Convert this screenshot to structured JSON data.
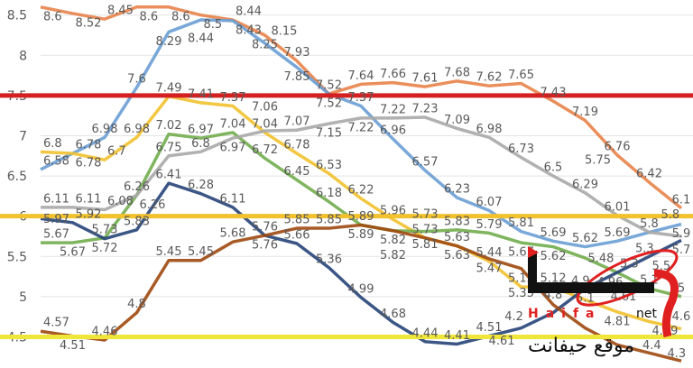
{
  "chart_data": {
    "type": "line",
    "title": "",
    "xlabel": "",
    "ylabel": "",
    "ylim": [
      4.5,
      8.5
    ],
    "yticks": [
      "8.5",
      "8",
      "7.5",
      "7",
      "6.5",
      "6",
      "5.5",
      "5",
      "4.5"
    ],
    "grid": true,
    "x": [
      0,
      1,
      2,
      3,
      4,
      5,
      6,
      7,
      8,
      9,
      10,
      11,
      12,
      13,
      14,
      15,
      16,
      17,
      18,
      19,
      20
    ],
    "series": [
      {
        "name": "orange",
        "color": "#E8834A",
        "values": [
          8.6,
          8.52,
          8.45,
          8.6,
          8.6,
          8.5,
          8.44,
          8.25,
          7.93,
          7.52,
          7.64,
          7.66,
          7.61,
          7.68,
          7.62,
          7.65,
          7.43,
          7.19,
          6.76,
          6.42,
          6.1
        ]
      },
      {
        "name": "blue",
        "color": "#6A9ED4",
        "values": [
          6.58,
          6.78,
          6.98,
          7.6,
          8.29,
          8.44,
          8.43,
          8.15,
          7.85,
          7.52,
          7.37,
          6.96,
          6.57,
          6.23,
          6.07,
          5.81,
          5.69,
          5.62,
          5.69,
          5.8,
          5.9
        ]
      },
      {
        "name": "yellow",
        "color": "#F2C12E",
        "values": [
          6.8,
          6.78,
          6.7,
          6.98,
          7.49,
          7.41,
          7.37,
          7.04,
          6.78,
          6.53,
          6.22,
          5.96,
          5.73,
          5.63,
          5.44,
          5.12,
          5.12,
          4.96,
          4.81,
          4.69,
          4.6
        ]
      },
      {
        "name": "green",
        "color": "#72AD4E",
        "values": [
          5.67,
          5.67,
          5.73,
          6.26,
          7.02,
          6.97,
          7.04,
          6.72,
          6.45,
          6.18,
          5.89,
          5.82,
          5.81,
          5.83,
          5.79,
          5.67,
          5.62,
          5.48,
          5.3,
          5.1,
          5.0
        ]
      },
      {
        "name": "gray",
        "color": "#A8A8A8",
        "values": [
          6.11,
          6.11,
          6.08,
          6.26,
          6.75,
          6.8,
          6.97,
          7.06,
          7.07,
          7.15,
          7.22,
          7.22,
          7.23,
          7.09,
          6.98,
          6.73,
          6.5,
          6.29,
          6.01,
          5.8,
          5.75
        ]
      },
      {
        "name": "navy",
        "color": "#264478",
        "values": [
          5.97,
          5.92,
          5.72,
          5.83,
          6.41,
          6.28,
          6.11,
          5.76,
          5.66,
          5.36,
          4.99,
          4.68,
          4.44,
          4.41,
          4.51,
          4.61,
          4.8,
          5.1,
          5.3,
          5.5,
          5.7
        ]
      },
      {
        "name": "brown",
        "color": "#9E480E",
        "values": [
          4.57,
          4.51,
          4.46,
          4.8,
          5.45,
          5.45,
          5.68,
          5.76,
          5.85,
          5.85,
          5.89,
          5.82,
          5.73,
          5.63,
          5.47,
          5.35,
          4.9,
          4.61,
          4.4,
          4.3,
          4.2
        ]
      }
    ],
    "reference_lines": [
      {
        "value": 7.5,
        "color": "#D42020"
      },
      {
        "value": 6.0,
        "color": "#F2C12E"
      },
      {
        "value": 4.5,
        "color": "#F0E63A"
      }
    ]
  },
  "watermark": {
    "arabic": "حيفا",
    "latin": "Haifa",
    "suffix": "net",
    "tagline": "موقع حيفانت"
  }
}
